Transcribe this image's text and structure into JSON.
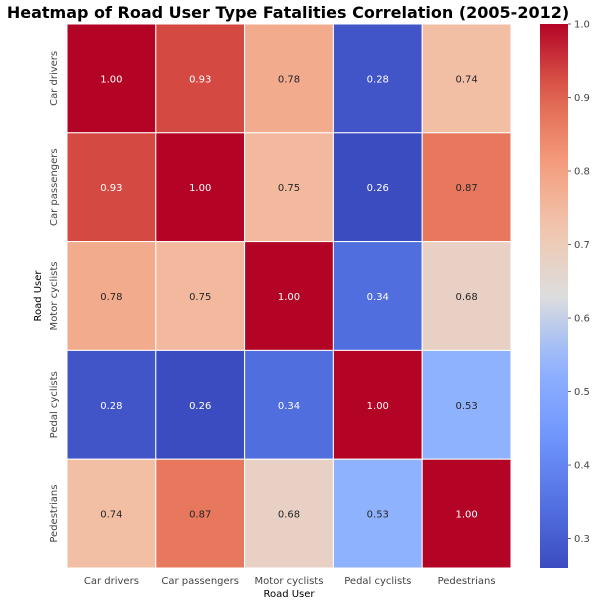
{
  "chart_data": {
    "type": "heatmap",
    "title": "Heatmap of Road User Type Fatalities Correlation (2005-2012)",
    "xlabel": "Road User",
    "ylabel": "Road User",
    "x_categories": [
      "Car drivers",
      "Car passengers",
      "Motor cyclists",
      "Pedal cyclists",
      "Pedestrians"
    ],
    "y_categories": [
      "Car drivers",
      "Car passengers",
      "Motor cyclists",
      "Pedal cyclists",
      "Pedestrians"
    ],
    "values": [
      [
        1.0,
        0.93,
        0.78,
        0.28,
        0.74
      ],
      [
        0.93,
        1.0,
        0.75,
        0.26,
        0.87
      ],
      [
        0.78,
        0.75,
        1.0,
        0.34,
        0.68
      ],
      [
        0.28,
        0.26,
        0.34,
        1.0,
        0.53
      ],
      [
        0.74,
        0.87,
        0.68,
        0.53,
        1.0
      ]
    ],
    "value_format": "0.00",
    "colormap": "coolwarm",
    "colorbar": {
      "vmin": 0.26,
      "vmax": 1.0,
      "ticks": [
        "0.3",
        "0.4",
        "0.5",
        "0.6",
        "0.7",
        "0.8",
        "0.9",
        "1.0"
      ],
      "tick_values": [
        0.3,
        0.4,
        0.5,
        0.6,
        0.7,
        0.8,
        0.9,
        1.0
      ]
    },
    "cell_border_color": "#ffffff",
    "grid": false
  }
}
